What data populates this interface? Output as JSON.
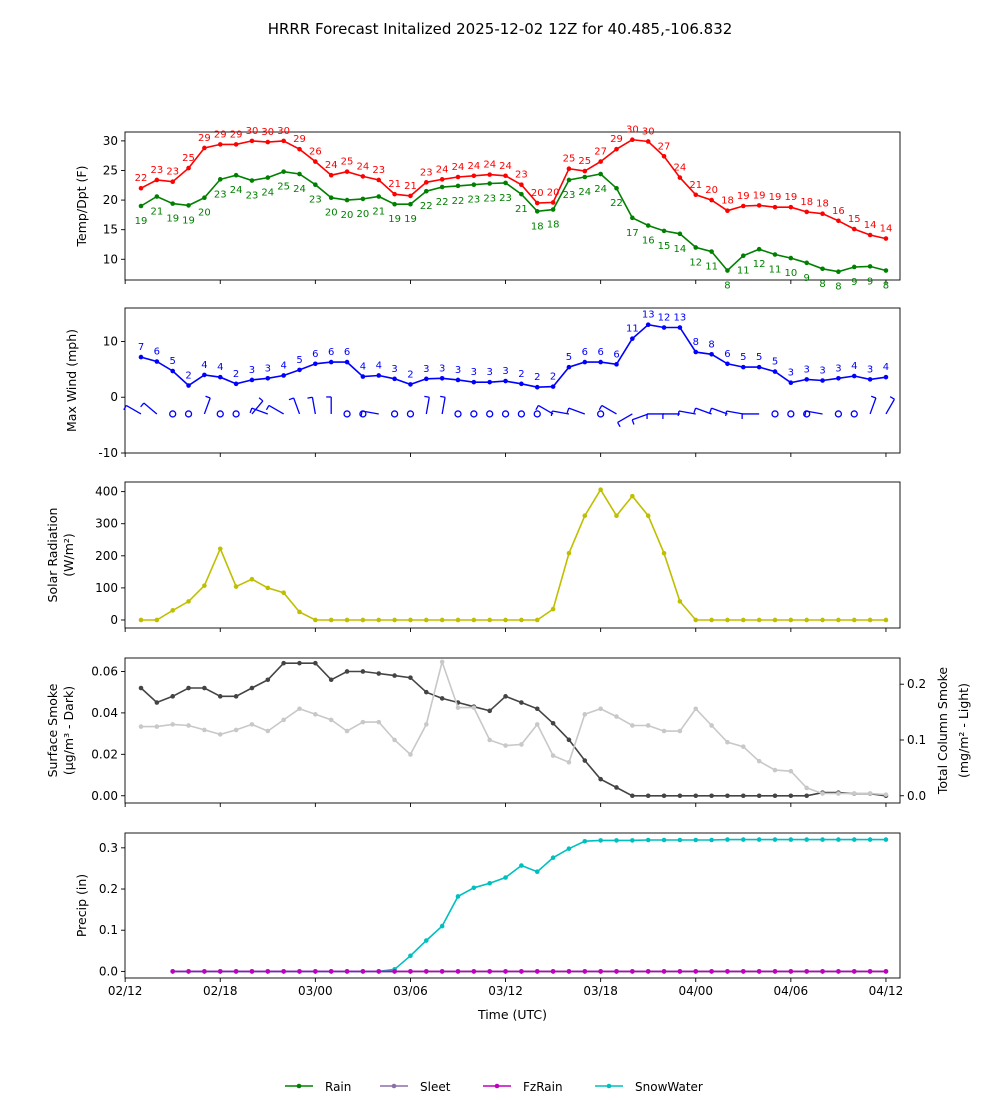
{
  "title": "HRRR Forecast Initalized 2025-12-02 12Z for 40.485,-106.832",
  "x_ticks": [
    "02/12",
    "02/18",
    "03/00",
    "03/06",
    "03/12",
    "03/18",
    "04/00",
    "04/06",
    "04/12"
  ],
  "xlabel": "Time (UTC)",
  "chart_data": [
    {
      "type": "line",
      "name": "temperature",
      "ylabel": "Temp/Dpt (F)",
      "ylim": [
        6.5,
        31.5
      ],
      "yticks": [
        10,
        15,
        20,
        25,
        30
      ],
      "x": [
        1,
        2,
        3,
        4,
        5,
        6,
        7,
        8,
        9,
        10,
        11,
        12,
        13,
        14,
        15,
        16,
        17,
        18,
        19,
        20,
        21,
        22,
        23,
        24,
        25,
        26,
        27,
        28,
        29,
        30,
        31,
        32,
        33,
        34,
        35,
        36,
        37,
        38,
        39,
        40,
        41,
        42,
        43,
        44,
        45,
        46,
        47,
        48
      ],
      "series": [
        {
          "name": "Temperature",
          "color": "#ff0000",
          "values": [
            22,
            23.4,
            23.1,
            25.4,
            28.8,
            29.4,
            29.4,
            30,
            29.8,
            30,
            28.6,
            26.5,
            24.2,
            24.8,
            24,
            23.4,
            21,
            20.7,
            23,
            23.5,
            23.9,
            24.1,
            24.3,
            24.1,
            22.6,
            19.5,
            19.6,
            25.3,
            24.9,
            26.5,
            28.6,
            30.2,
            29.9,
            27.4,
            23.8,
            20.9,
            20,
            18.2,
            19,
            19.1,
            18.8,
            18.8,
            18,
            17.7,
            16.5,
            15.1,
            14.1,
            13.5
          ],
          "labels": [
            "22",
            "23",
            "23",
            "25",
            "29",
            "29",
            "29",
            "30",
            "30",
            "30",
            "29",
            "26",
            "24",
            "25",
            "24",
            "23",
            "21",
            "21",
            "23",
            "24",
            "24",
            "24",
            "24",
            "24",
            "23",
            "20",
            "20",
            "25",
            "25",
            "27",
            "29",
            "30",
            "30",
            "27",
            "24",
            "21",
            "20",
            "18",
            "19",
            "19",
            "19",
            "19",
            "18",
            "18",
            "16",
            "15",
            "14",
            "14"
          ]
        },
        {
          "name": "Dewpoint",
          "color": "#008000",
          "values": [
            19,
            20.6,
            19.4,
            19.1,
            20.4,
            23.5,
            24.2,
            23.3,
            23.8,
            24.8,
            24.4,
            22.6,
            20.4,
            20,
            20.2,
            20.6,
            19.3,
            19.3,
            21.5,
            22.2,
            22.4,
            22.6,
            22.8,
            22.9,
            21,
            18.1,
            18.4,
            23.4,
            23.9,
            24.4,
            22,
            17,
            15.7,
            14.8,
            14.3,
            12,
            11.3,
            8.1,
            10.6,
            11.7,
            10.8,
            10.2,
            9.4,
            8.4,
            7.9,
            8.7,
            8.8,
            8.1
          ],
          "labels": [
            "19",
            "21",
            "19",
            "19",
            "20",
            "23",
            "24",
            "23",
            "24",
            "25",
            "24",
            "23",
            "20",
            "20",
            "20",
            "21",
            "19",
            "19",
            "22",
            "22",
            "22",
            "23",
            "23",
            "23",
            "21",
            "18",
            "18",
            "23",
            "24",
            "24",
            "22",
            "17",
            "16",
            "15",
            "14",
            "12",
            "11",
            "8",
            "11",
            "12",
            "11",
            "10",
            "9",
            "8",
            "8",
            "9",
            "9",
            "8"
          ]
        }
      ]
    },
    {
      "type": "line",
      "name": "wind",
      "ylabel": "Max Wind (mph)",
      "ylim": [
        -10,
        16
      ],
      "yticks": [
        -10,
        0,
        10
      ],
      "x": [
        1,
        2,
        3,
        4,
        5,
        6,
        7,
        8,
        9,
        10,
        11,
        12,
        13,
        14,
        15,
        16,
        17,
        18,
        19,
        20,
        21,
        22,
        23,
        24,
        25,
        26,
        27,
        28,
        29,
        30,
        31,
        32,
        33,
        34,
        35,
        36,
        37,
        38,
        39,
        40,
        41,
        42,
        43,
        44,
        45,
        46,
        47,
        48
      ],
      "series": [
        {
          "name": "Max Wind",
          "color": "#0000ff",
          "values": [
            7.2,
            6.4,
            4.7,
            2.1,
            4,
            3.6,
            2.4,
            3.1,
            3.4,
            3.9,
            4.9,
            6,
            6.3,
            6.3,
            3.7,
            3.9,
            3.3,
            2.3,
            3.3,
            3.4,
            3.1,
            2.7,
            2.7,
            2.9,
            2.4,
            1.8,
            1.9,
            5.4,
            6.3,
            6.3,
            5.9,
            10.5,
            13,
            12.5,
            12.5,
            8.1,
            7.7,
            6,
            5.4,
            5.4,
            4.6,
            2.6,
            3.2,
            3,
            3.4,
            3.8,
            3.2,
            3.6
          ],
          "labels": [
            "7",
            "6",
            "5",
            "2",
            "4",
            "4",
            "2",
            "3",
            "3",
            "4",
            "5",
            "6",
            "6",
            "6",
            "4",
            "4",
            "3",
            "2",
            "3",
            "3",
            "3",
            "3",
            "3",
            "3",
            "2",
            "2",
            "2",
            "5",
            "6",
            "6",
            "6",
            "11",
            "13",
            "12",
            "13",
            "8",
            "8",
            "6",
            "5",
            "5",
            "5",
            "3",
            "3",
            "3",
            "3",
            "4",
            "3",
            "4"
          ]
        }
      ],
      "barbs_y": -3,
      "barb_dirs": [
        300,
        310,
        null,
        null,
        20,
        null,
        null,
        40,
        290,
        300,
        340,
        350,
        0,
        null,
        null,
        280,
        null,
        null,
        10,
        10,
        null,
        null,
        null,
        null,
        null,
        null,
        300,
        280,
        290,
        null,
        300,
        240,
        250,
        270,
        270,
        280,
        290,
        290,
        280,
        270,
        null,
        null,
        null,
        280,
        null,
        null,
        20,
        30
      ]
    },
    {
      "type": "line",
      "name": "solar",
      "ylabel": "Solar Radiation",
      "ylabel_unit": "(W/m²)",
      "ylim": [
        -25,
        430
      ],
      "yticks": [
        0,
        100,
        200,
        300,
        400
      ],
      "x": [
        1,
        2,
        3,
        4,
        5,
        6,
        7,
        8,
        9,
        10,
        11,
        12,
        13,
        14,
        15,
        16,
        17,
        18,
        19,
        20,
        21,
        22,
        23,
        24,
        25,
        26,
        27,
        28,
        29,
        30,
        31,
        32,
        33,
        34,
        35,
        36,
        37,
        38,
        39,
        40,
        41,
        42,
        43,
        44,
        45,
        46,
        47,
        48
      ],
      "series": [
        {
          "name": "Solar Radiation",
          "color": "#bfbf00",
          "values": [
            0,
            0,
            30,
            58,
            107,
            222,
            104,
            127,
            100,
            85,
            25,
            0,
            0,
            0,
            0,
            0,
            0,
            0,
            0,
            0,
            0,
            0,
            0,
            0,
            0,
            0,
            34,
            208,
            325,
            406,
            325,
            386,
            325,
            208,
            58,
            0,
            0,
            0,
            0,
            0,
            0,
            0,
            0,
            0,
            0,
            0,
            0,
            0
          ]
        }
      ]
    },
    {
      "type": "line",
      "name": "smoke",
      "ylabel": "Surface Smoke",
      "ylabel_unit": "(µg/m³ - Dark)",
      "ylim": [
        -0.0035,
        0.0665
      ],
      "yticks": [
        0.0,
        0.02,
        0.04,
        0.06
      ],
      "ylabel_right": "Total Column Smoke",
      "ylabel_right_unit": "(mg/m² - Light)",
      "ylim_right": [
        -0.013,
        0.247
      ],
      "yticks_right": [
        0.0,
        0.1,
        0.2
      ],
      "x": [
        1,
        2,
        3,
        4,
        5,
        6,
        7,
        8,
        9,
        10,
        11,
        12,
        13,
        14,
        15,
        16,
        17,
        18,
        19,
        20,
        21,
        22,
        23,
        24,
        25,
        26,
        27,
        28,
        29,
        30,
        31,
        32,
        33,
        34,
        35,
        36,
        37,
        38,
        39,
        40,
        41,
        42,
        43,
        44,
        45,
        46,
        47,
        48
      ],
      "series": [
        {
          "name": "Surface Smoke",
          "color": "#444444",
          "axis": "left",
          "values": [
            0.052,
            0.045,
            0.048,
            0.052,
            0.052,
            0.048,
            0.048,
            0.052,
            0.056,
            0.064,
            0.064,
            0.064,
            0.056,
            0.06,
            0.06,
            0.059,
            0.058,
            0.057,
            0.05,
            0.047,
            0.045,
            0.043,
            0.041,
            0.048,
            0.045,
            0.042,
            0.035,
            0.027,
            0.017,
            0.008,
            0.004,
            0,
            0,
            0,
            0,
            0,
            0,
            0,
            0,
            0,
            0,
            0,
            0,
            0.0015,
            0.0015,
            0.001,
            0.001,
            0
          ]
        },
        {
          "name": "Total Column Smoke",
          "color": "#c8c8c8",
          "axis": "right",
          "values": [
            0.124,
            0.124,
            0.128,
            0.126,
            0.118,
            0.11,
            0.118,
            0.128,
            0.116,
            0.136,
            0.156,
            0.146,
            0.136,
            0.116,
            0.132,
            0.132,
            0.1,
            0.074,
            0.128,
            0.24,
            0.158,
            0.158,
            0.1,
            0.09,
            0.092,
            0.128,
            0.072,
            0.06,
            0.146,
            0.156,
            0.142,
            0.126,
            0.126,
            0.116,
            0.116,
            0.156,
            0.126,
            0.096,
            0.088,
            0.062,
            0.046,
            0.044,
            0.014,
            0.004,
            0.004,
            0.004,
            0.004,
            0.002
          ]
        }
      ]
    },
    {
      "type": "line",
      "name": "precip",
      "ylabel": "Precip (in)",
      "ylim": [
        -0.016,
        0.336
      ],
      "yticks": [
        0.0,
        0.1,
        0.2,
        0.3
      ],
      "xlabel": "Time (UTC)",
      "x": [
        3,
        4,
        5,
        6,
        7,
        8,
        9,
        10,
        11,
        12,
        13,
        14,
        15,
        16,
        17,
        18,
        19,
        20,
        21,
        22,
        23,
        24,
        25,
        26,
        27,
        28,
        29,
        30,
        31,
        32,
        33,
        34,
        35,
        36,
        37,
        38,
        39,
        40,
        41,
        42,
        43,
        44,
        45,
        46,
        47,
        48
      ],
      "series": [
        {
          "name": "Rain",
          "color": "#008000",
          "values": [
            0,
            0,
            0,
            0,
            0,
            0,
            0,
            0,
            0,
            0,
            0,
            0,
            0,
            0,
            0,
            0,
            0,
            0,
            0,
            0,
            0,
            0,
            0,
            0,
            0,
            0,
            0,
            0,
            0,
            0,
            0,
            0,
            0,
            0,
            0,
            0,
            0,
            0,
            0,
            0,
            0,
            0,
            0,
            0,
            0,
            0
          ]
        },
        {
          "name": "Sleet",
          "color": "#8c6fa8",
          "values": [
            0,
            0,
            0,
            0,
            0,
            0,
            0,
            0,
            0,
            0,
            0,
            0,
            0,
            0,
            0,
            0,
            0,
            0,
            0,
            0,
            0,
            0,
            0,
            0,
            0,
            0,
            0,
            0,
            0,
            0,
            0,
            0,
            0,
            0,
            0,
            0,
            0,
            0,
            0,
            0,
            0,
            0,
            0,
            0,
            0,
            0
          ]
        },
        {
          "name": "SnowWater",
          "color": "#00bfbf",
          "values": [
            0,
            0,
            0,
            0,
            0,
            0,
            0,
            0,
            0,
            0,
            0,
            0,
            0,
            0,
            0.005,
            0.038,
            0.075,
            0.11,
            0.182,
            0.203,
            0.214,
            0.228,
            0.257,
            0.242,
            0.276,
            0.298,
            0.316,
            0.318,
            0.318,
            0.318,
            0.319,
            0.319,
            0.319,
            0.319,
            0.319,
            0.32,
            0.32,
            0.32,
            0.32,
            0.32,
            0.32,
            0.32,
            0.32,
            0.32,
            0.32,
            0.32
          ]
        },
        {
          "name": "FzRain",
          "color": "#bf00bf",
          "values": [
            0,
            0,
            0,
            0,
            0,
            0,
            0,
            0,
            0,
            0,
            0,
            0,
            0,
            0,
            0,
            0,
            0,
            0,
            0,
            0,
            0,
            0,
            0,
            0,
            0,
            0,
            0,
            0,
            0,
            0,
            0,
            0,
            0,
            0,
            0,
            0,
            0,
            0,
            0,
            0,
            0,
            0,
            0,
            0,
            0,
            0
          ]
        }
      ]
    }
  ],
  "legend": [
    {
      "label": "Rain",
      "color": "#008000"
    },
    {
      "label": "Sleet",
      "color": "#8c6fa8"
    },
    {
      "label": "FzRain",
      "color": "#bf00bf"
    },
    {
      "label": "SnowWater",
      "color": "#00bfbf"
    }
  ]
}
